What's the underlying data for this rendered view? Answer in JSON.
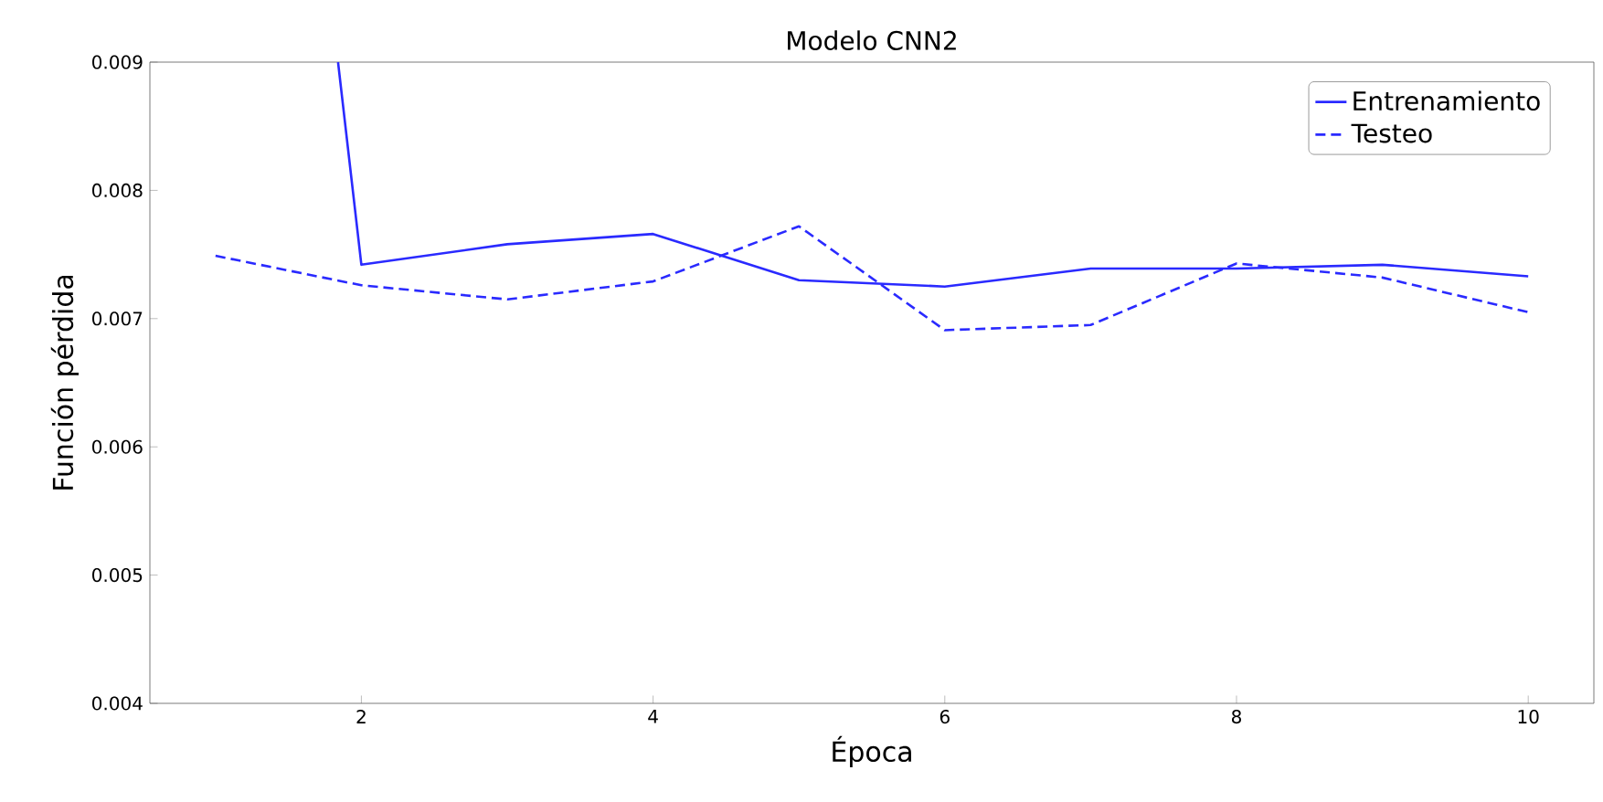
{
  "chart_data": {
    "type": "line",
    "title": "Modelo CNN2",
    "xlabel": "Época",
    "ylabel": "Función pérdida",
    "x": [
      1,
      2,
      3,
      4,
      5,
      6,
      7,
      8,
      9,
      10
    ],
    "series": [
      {
        "name": "Entrenamiento",
        "color": "#2a2aff",
        "line_style": "solid",
        "x": [
          1.84,
          2,
          3,
          4,
          5,
          6,
          7,
          8,
          9,
          10
        ],
        "values": [
          0.009,
          0.00742,
          0.00758,
          0.00766,
          0.0073,
          0.00725,
          0.00739,
          0.00739,
          0.00742,
          0.00733
        ]
      },
      {
        "name": "Testeo",
        "color": "#2a2aff",
        "line_style": "dashed",
        "values": [
          0.00749,
          0.00726,
          0.00715,
          0.00729,
          0.00772,
          0.00691,
          0.00695,
          0.00743,
          0.00732,
          0.00705
        ]
      }
    ],
    "xlim": [
      0.55,
      10.45
    ],
    "ylim": [
      0.004,
      0.009
    ],
    "xticks": [
      2,
      4,
      6,
      8,
      10
    ],
    "yticks": [
      0.004,
      0.005,
      0.006,
      0.007,
      0.008,
      0.009
    ],
    "grid": false,
    "legend": "top right",
    "marker": "none"
  }
}
